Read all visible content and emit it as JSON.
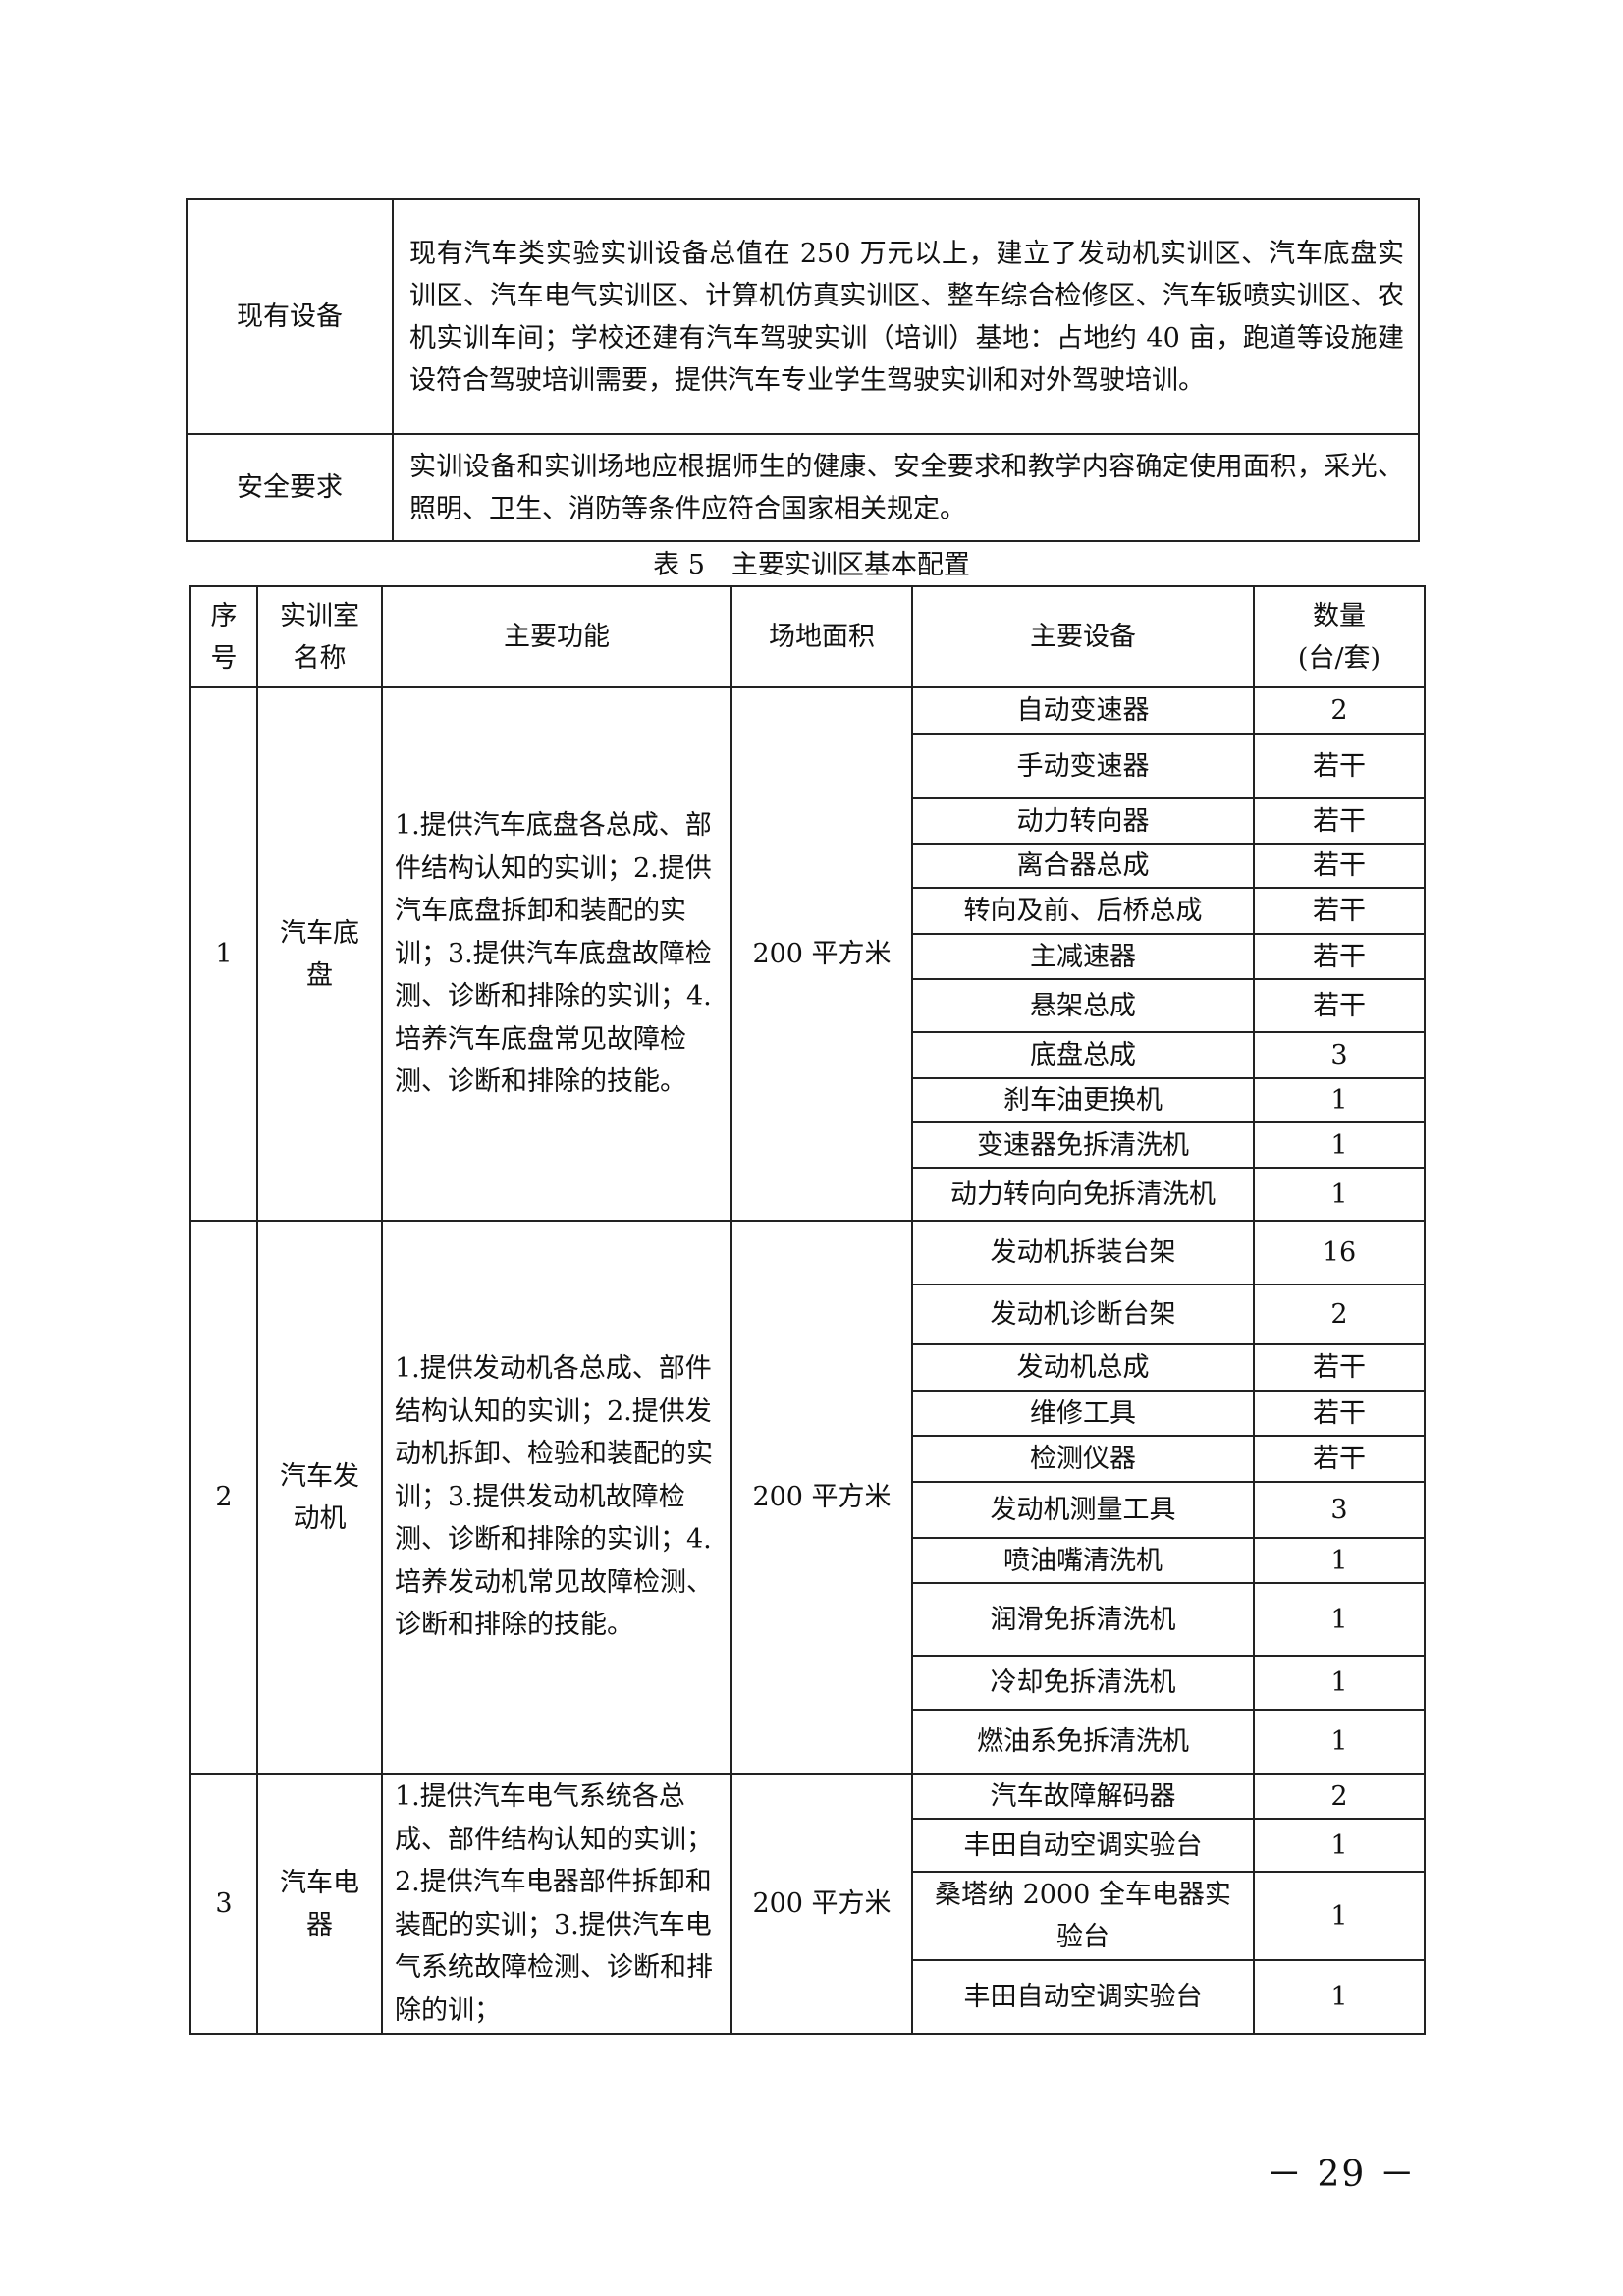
{
  "top_table": {
    "rows": [
      {
        "label": "现有设备",
        "text": "现有汽车类实验实训设备总值在 250 万元以上，建立了发动机实训区、汽车底盘实训区、汽车电气实训区、计算机仿真实训区、整车综合检修区、汽车钣喷实训区、农机实训车间；学校还建有汽车驾驶实训（培训）基地：占地约 40 亩，跑道等设施建设符合驾驶培训需要，提供汽车专业学生驾驶实训和对外驾驶培训。"
      },
      {
        "label": "安全要求",
        "text": "实训设备和实训场地应根据师生的健康、安全要求和教学内容确定使用面积，采光、照明、卫生、消防等条件应符合国家相关规定。"
      }
    ]
  },
  "table5": {
    "caption": "表 5　主要实训区基本配置",
    "headers": {
      "no_1": "序",
      "no_2": "号",
      "room_1": "实训室",
      "room_2": "名称",
      "function": "主要功能",
      "area": "场地面积",
      "equipment": "主要设备",
      "qty_1": "数量",
      "qty_2": "(台/套)"
    },
    "sections": [
      {
        "no": "1",
        "room": "汽车底盘",
        "area": "200 平方米",
        "function": "1.提供汽车底盘各总成、部件结构认知的实训；2.提供汽车底盘拆卸和装配的实训；3.提供汽车底盘故障检测、诊断和排除的实训；4.培养汽车底盘常见故障检测、诊断和排除的技能。",
        "items": [
          {
            "name": "自动变速器",
            "qty": "2"
          },
          {
            "name": "手动变速器",
            "qty": "若干"
          },
          {
            "name": "动力转向器",
            "qty": "若干"
          },
          {
            "name": "离合器总成",
            "qty": "若干"
          },
          {
            "name": "转向及前、后桥总成",
            "qty": "若干"
          },
          {
            "name": "主减速器",
            "qty": "若干"
          },
          {
            "name": "悬架总成",
            "qty": "若干"
          },
          {
            "name": "底盘总成",
            "qty": "3"
          },
          {
            "name": "刹车油更换机",
            "qty": "1"
          },
          {
            "name": "变速器免拆清洗机",
            "qty": "1"
          },
          {
            "name": "动力转向向免拆清洗机",
            "qty": "1"
          }
        ]
      },
      {
        "no": "2",
        "room": "汽车发动机",
        "area": "200 平方米",
        "function": "1.提供发动机各总成、部件结构认知的实训；2.提供发动机拆卸、检验和装配的实训；3.提供发动机故障检测、诊断和排除的实训；4.培养发动机常见故障检测、诊断和排除的技能。",
        "items": [
          {
            "name": "发动机拆装台架",
            "qty": "16"
          },
          {
            "name": "发动机诊断台架",
            "qty": "2"
          },
          {
            "name": "发动机总成",
            "qty": "若干"
          },
          {
            "name": "维修工具",
            "qty": "若干"
          },
          {
            "name": "检测仪器",
            "qty": "若干"
          },
          {
            "name": "发动机测量工具",
            "qty": "3"
          },
          {
            "name": "喷油嘴清洗机",
            "qty": "1"
          },
          {
            "name": "润滑免拆清洗机",
            "qty": "1"
          },
          {
            "name": "冷却免拆清洗机",
            "qty": "1"
          },
          {
            "name": "燃油系免拆清洗机",
            "qty": "1"
          }
        ]
      },
      {
        "no": "3",
        "room": "汽车电器",
        "area": "200 平方米",
        "function": "1.提供汽车电气系统各总成、部件结构认知的实训；2.提供汽车电器部件拆卸和装配的实训；3.提供汽车电气系统故障检测、诊断和排除的训；",
        "items": [
          {
            "name": "汽车故障解码器",
            "qty": "2"
          },
          {
            "name": "丰田自动空调实验台",
            "qty": "1"
          },
          {
            "name": "桑塔纳 2000 全车电器实验台",
            "qty": "1"
          },
          {
            "name": "丰田自动空调实验台",
            "qty": "1"
          }
        ]
      }
    ]
  },
  "page_number": "－ 29 －"
}
